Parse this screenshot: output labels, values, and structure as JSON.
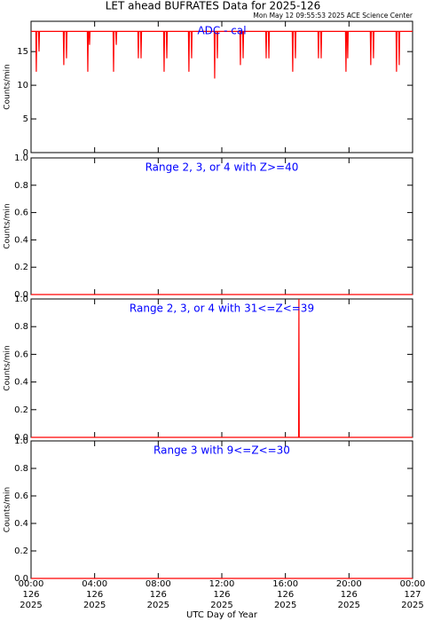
{
  "title": "LET ahead BUFRATES Data for 2025-126",
  "timestamp": "Mon May 12 09:55:53 2025 ACE Science Center",
  "xlabel": "UTC Day of Year",
  "xlim": [
    0,
    24
  ],
  "xticks": [
    {
      "value": 0,
      "label": "00:00",
      "day": "126",
      "year": "2025"
    },
    {
      "value": 4,
      "label": "04:00",
      "day": "126",
      "year": "2025"
    },
    {
      "value": 8,
      "label": "08:00",
      "day": "126",
      "year": "2025"
    },
    {
      "value": 12,
      "label": "12:00",
      "day": "126",
      "year": "2025"
    },
    {
      "value": 16,
      "label": "16:00",
      "day": "126",
      "year": "2025"
    },
    {
      "value": 20,
      "label": "20:00",
      "day": "126",
      "year": "2025"
    },
    {
      "value": 24,
      "label": "00:00",
      "day": "127",
      "year": "2025"
    }
  ],
  "chart_data": [
    {
      "type": "line",
      "annotation": "ADC - cal",
      "ylabel": "Counts/min",
      "color": "#ff0000",
      "ylim": [
        0,
        19.5
      ],
      "yticks": [
        0,
        5,
        10,
        15
      ],
      "x": [
        0,
        0.3,
        0.33,
        0.36,
        0.47,
        0.5,
        0.53,
        2.03,
        2.06,
        2.09,
        2.2,
        2.23,
        2.26,
        3.54,
        3.57,
        3.6,
        3.65,
        3.68,
        3.71,
        5.16,
        5.19,
        5.22,
        5.33,
        5.36,
        5.39,
        6.72,
        6.75,
        6.78,
        6.89,
        6.92,
        6.95,
        8.34,
        8.37,
        8.4,
        8.51,
        8.54,
        8.57,
        9.9,
        9.93,
        9.96,
        10.07,
        10.1,
        10.13,
        11.52,
        11.55,
        11.58,
        11.69,
        11.72,
        11.75,
        13.14,
        13.17,
        13.2,
        13.31,
        13.34,
        13.37,
        14.76,
        14.79,
        14.82,
        14.93,
        14.96,
        14.99,
        16.43,
        16.46,
        16.49,
        16.6,
        16.63,
        16.66,
        18.05,
        18.08,
        18.11,
        18.22,
        18.25,
        18.28,
        19.78,
        19.81,
        19.84,
        19.89,
        19.92,
        19.95,
        21.34,
        21.37,
        21.4,
        21.51,
        21.54,
        21.57,
        22.96,
        22.99,
        23.02,
        23.13,
        23.16,
        23.19,
        24
      ],
      "values": [
        18,
        18,
        12,
        18,
        18,
        15,
        18,
        18,
        13,
        18,
        18,
        14,
        18,
        18,
        12,
        18,
        18,
        16,
        18,
        18,
        12,
        18,
        18,
        16,
        18,
        18,
        14,
        18,
        18,
        14,
        18,
        18,
        12,
        18,
        18,
        14,
        18,
        18,
        12,
        18,
        18,
        14,
        18,
        18,
        11,
        18,
        18,
        14,
        18,
        18,
        13,
        18,
        18,
        14,
        18,
        18,
        14,
        18,
        18,
        14,
        18,
        18,
        12,
        18,
        18,
        14,
        18,
        18,
        14,
        18,
        18,
        14,
        18,
        18,
        12,
        18,
        18,
        14,
        18,
        18,
        13,
        18,
        18,
        14,
        18,
        18,
        12,
        18,
        18,
        13,
        18,
        18
      ]
    },
    {
      "type": "line",
      "annotation": "Range 2, 3, or 4 with Z>=40",
      "ylabel": "Counts/min",
      "color": "#ff0000",
      "ylim": [
        0,
        1
      ],
      "yticks": [
        {
          "value": 0,
          "label": "0.0"
        },
        {
          "value": 0.2,
          "label": "0.2"
        },
        {
          "value": 0.4,
          "label": "0.4"
        },
        {
          "value": 0.6,
          "label": "0.6"
        },
        {
          "value": 0.8,
          "label": "0.8"
        },
        {
          "value": 1,
          "label": "1.0"
        }
      ],
      "x": [
        0,
        24
      ],
      "values": [
        0,
        0
      ]
    },
    {
      "type": "line",
      "annotation": "Range 2, 3, or 4 with 31<=Z<=39",
      "ylabel": "Counts/min",
      "color": "#ff0000",
      "ylim": [
        0,
        1
      ],
      "yticks": [
        {
          "value": 0,
          "label": "0.0"
        },
        {
          "value": 0.2,
          "label": "0.2"
        },
        {
          "value": 0.4,
          "label": "0.4"
        },
        {
          "value": 0.6,
          "label": "0.6"
        },
        {
          "value": 0.8,
          "label": "0.8"
        },
        {
          "value": 1,
          "label": "1.0"
        }
      ],
      "x": [
        0,
        16.83,
        16.85,
        16.87,
        24
      ],
      "values": [
        0,
        0,
        1,
        0,
        0
      ]
    },
    {
      "type": "line",
      "annotation": "Range 3 with 9<=Z<=30",
      "ylabel": "Counts/min",
      "color": "#ff0000",
      "ylim": [
        0,
        1
      ],
      "yticks": [
        {
          "value": 0,
          "label": "0.0"
        },
        {
          "value": 0.2,
          "label": "0.2"
        },
        {
          "value": 0.4,
          "label": "0.4"
        },
        {
          "value": 0.6,
          "label": "0.6"
        },
        {
          "value": 0.8,
          "label": "0.8"
        },
        {
          "value": 1,
          "label": "1.0"
        }
      ],
      "x": [
        0,
        24
      ],
      "values": [
        0,
        0
      ]
    }
  ]
}
